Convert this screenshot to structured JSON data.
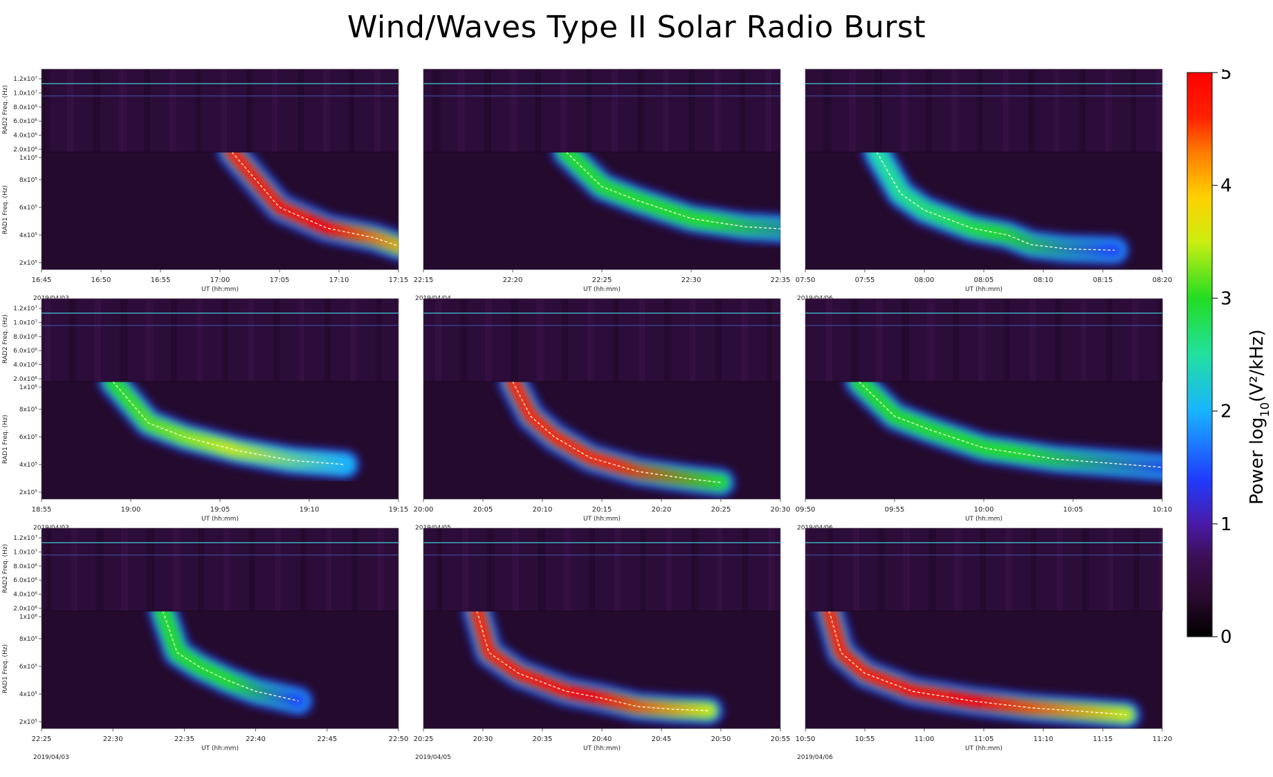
{
  "title": "Wind/Waves Type II Solar Radio Burst",
  "chart_data": {
    "type": "heatmap",
    "title": "Wind/Waves Type II Solar Radio Burst",
    "colorbar": {
      "label": "Power log₁₀ (V²/kHz)",
      "label_main": "Power log",
      "label_sub": "10",
      "label_unit": "(V²/kHz)",
      "range": [
        0,
        5
      ],
      "ticks": [
        "0",
        "1",
        "2",
        "3",
        "4",
        "5"
      ]
    },
    "panels": [
      {
        "id": "r1c1",
        "date": "2019/04/03",
        "xlabel": "UT (hh:mm)",
        "xticks": [
          "16:45",
          "16:50",
          "16:55",
          "17:00",
          "17:05",
          "17:10",
          "17:15"
        ],
        "rad2_label": "RAD2 Freq. (Hz)",
        "rad1_label": "RAD1 Freq. (Hz)",
        "rad2_ticks": [
          "1.2x10⁷",
          "1.0x10⁷",
          "8.0x10⁶",
          "6.0x10⁶",
          "4.0x10⁶",
          "2.0x10⁶"
        ],
        "rad1_ticks": [
          "1x10⁶",
          "8x10⁵",
          "6x10⁵",
          "4x10⁵",
          "2x10⁵"
        ],
        "peak_level": 5,
        "track_minutes": [
          [
            16.0,
            1000
          ],
          [
            18,
            800
          ],
          [
            20,
            600
          ],
          [
            24,
            450
          ],
          [
            28,
            380
          ],
          [
            30,
            320
          ],
          [
            32,
            280
          ]
        ]
      },
      {
        "id": "r1c2",
        "date": "2019/04/04",
        "xlabel": "UT (hh:mm)",
        "xticks": [
          "22:15",
          "22:20",
          "22:25",
          "22:30",
          "22:35"
        ],
        "rad2_label": "",
        "rad1_label": "",
        "peak_level": 3.3,
        "track_minutes": [
          [
            8,
            1000
          ],
          [
            10,
            750
          ],
          [
            12,
            650
          ],
          [
            15,
            520
          ],
          [
            18,
            460
          ],
          [
            22,
            430
          ],
          [
            24,
            420
          ]
        ]
      },
      {
        "id": "r1c3",
        "date": "2019/04/06",
        "xlabel": "UT (hh:mm)",
        "xticks": [
          "07:50",
          "07:55",
          "08:00",
          "08:05",
          "08:10",
          "08:15",
          "08:20"
        ],
        "rad2_label": "",
        "rad1_label": "",
        "peak_level": 3,
        "track_minutes": [
          [
            6,
            1000
          ],
          [
            8,
            700
          ],
          [
            10,
            580
          ],
          [
            14,
            450
          ],
          [
            17,
            400
          ],
          [
            19,
            330
          ],
          [
            22,
            300
          ],
          [
            26,
            290
          ]
        ]
      },
      {
        "id": "r2c1",
        "date": "2019/04/03",
        "xlabel": "UT (hh:mm)",
        "xticks": [
          "18:55",
          "19:00",
          "19:05",
          "19:10",
          "19:15"
        ],
        "rad2_label": "RAD2 Freq. (Hz)",
        "rad1_label": "RAD1 Freq. (Hz)",
        "rad2_ticks": [
          "1.2x10⁷",
          "1.0x10⁷",
          "8.0x10⁶",
          "6.0x10⁶",
          "4.0x10⁶",
          "2.0x10⁶"
        ],
        "rad1_ticks": [
          "1x10⁶",
          "8x10⁵",
          "6x10⁵",
          "4x10⁵",
          "2x10⁵"
        ],
        "peak_level": 3.5,
        "track_minutes": [
          [
            4,
            1000
          ],
          [
            6,
            700
          ],
          [
            8,
            600
          ],
          [
            11,
            500
          ],
          [
            14,
            430
          ],
          [
            17,
            400
          ]
        ]
      },
      {
        "id": "r2c2",
        "date": "2019/04/05",
        "xlabel": "UT (hh:mm)",
        "xticks": [
          "20:00",
          "20:05",
          "20:10",
          "20:15",
          "20:20",
          "20:25",
          "20:30"
        ],
        "rad2_label": "",
        "rad1_label": "",
        "peak_level": 4.8,
        "track_minutes": [
          [
            7.5,
            1000
          ],
          [
            9,
            750
          ],
          [
            11,
            600
          ],
          [
            14,
            450
          ],
          [
            18,
            350
          ],
          [
            22,
            300
          ],
          [
            25,
            270
          ]
        ]
      },
      {
        "id": "r2c3",
        "date": "2019/04/06",
        "xlabel": "UT (hh:mm)",
        "xticks": [
          "09:50",
          "09:55",
          "10:00",
          "10:05",
          "10:10"
        ],
        "rad2_label": "",
        "rad1_label": "",
        "peak_level": 3.2,
        "track_minutes": [
          [
            3,
            1000
          ],
          [
            5,
            750
          ],
          [
            7,
            650
          ],
          [
            10,
            520
          ],
          [
            14,
            440
          ],
          [
            18,
            400
          ],
          [
            21,
            370
          ]
        ]
      },
      {
        "id": "r3c1",
        "date": "2019/04/03",
        "xlabel": "UT (hh:mm)",
        "xticks": [
          "22:25",
          "22:30",
          "22:35",
          "22:40",
          "22:45",
          "22:50"
        ],
        "rad2_label": "RAD2 Freq. (Hz)",
        "rad1_label": "RAD1 Freq. (Hz)",
        "rad2_ticks": [
          "1.2x10⁷",
          "1.0x10⁷",
          "8.0x10⁶",
          "6.0x10⁶",
          "4.0x10⁶",
          "2.0x10⁶"
        ],
        "rad1_ticks": [
          "1x10⁶",
          "8x10⁵",
          "6x10⁵",
          "4x10⁵",
          "2x10⁵"
        ],
        "peak_level": 3.4,
        "track_minutes": [
          [
            8.5,
            1000
          ],
          [
            9.5,
            700
          ],
          [
            11,
            600
          ],
          [
            13,
            500
          ],
          [
            15,
            420
          ],
          [
            18,
            350
          ]
        ]
      },
      {
        "id": "r3c2",
        "date": "2019/04/05",
        "xlabel": "UT (hh:mm)",
        "xticks": [
          "20:25",
          "20:30",
          "20:35",
          "20:40",
          "20:45",
          "20:50",
          "20:55"
        ],
        "rad2_label": "",
        "rad1_label": "",
        "peak_level": 5,
        "track_minutes": [
          [
            4.5,
            1000
          ],
          [
            5.5,
            700
          ],
          [
            8,
            550
          ],
          [
            12,
            420
          ],
          [
            15,
            370
          ],
          [
            18,
            310
          ],
          [
            21,
            290
          ],
          [
            24,
            280
          ]
        ]
      },
      {
        "id": "r3c3",
        "date": "2019/04/06",
        "xlabel": "UT (hh:mm)",
        "xticks": [
          "10:50",
          "10:55",
          "11:00",
          "11:05",
          "11:10",
          "11:15",
          "11:20"
        ],
        "rad2_label": "",
        "rad1_label": "",
        "peak_level": 5,
        "track_minutes": [
          [
            2,
            1000
          ],
          [
            3,
            700
          ],
          [
            5,
            550
          ],
          [
            9,
            420
          ],
          [
            14,
            350
          ],
          [
            19,
            300
          ],
          [
            24,
            270
          ],
          [
            27,
            250
          ]
        ]
      }
    ]
  }
}
